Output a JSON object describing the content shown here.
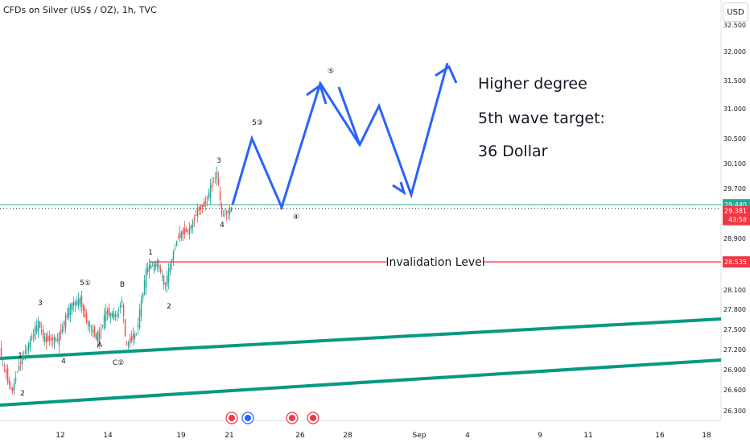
{
  "header": {
    "symbol_title": "CFDs on Silver (US$ / OZ), 1h, TVC",
    "currency": "USD"
  },
  "chart_data": {
    "type": "candlestick",
    "title": "CFDs on Silver (US$ / OZ), 1h, TVC",
    "y_axis": {
      "unit": "USD",
      "ticks": [
        "32.500",
        "32.000",
        "31.500",
        "31.000",
        "30.500",
        "30.100",
        "29.700",
        "28.900",
        "28.100",
        "27.800",
        "27.500",
        "27.200",
        "26.900",
        "26.600",
        "26.300"
      ],
      "ylim": [
        26.2,
        32.7
      ]
    },
    "x_axis": {
      "ticks": [
        "12",
        "14",
        "19",
        "21",
        "26",
        "28",
        "Sep",
        "4",
        "9",
        "11",
        "16",
        "18"
      ]
    },
    "price_labels": [
      {
        "value": "29.440",
        "color": "#22ab94"
      },
      {
        "value": "29.381",
        "sub": "43:58",
        "color": "#f23645"
      },
      {
        "value": "28.535",
        "color": "#f23645"
      }
    ],
    "horizontal_lines": [
      {
        "name": "green-level",
        "value": 29.44,
        "color": "#22ab94"
      },
      {
        "name": "current-price",
        "value": 29.381,
        "color": "#131722",
        "style": "dotted"
      },
      {
        "name": "invalidation-level",
        "value": 28.535,
        "color": "#f23645",
        "label": "Invalidation Level"
      }
    ],
    "projection_points_price": [
      29.44,
      30.5,
      29.4,
      31.45,
      30.4,
      31.05,
      29.6,
      31.8
    ],
    "wave_labels": [
      "1",
      "2",
      "3",
      "4",
      "5①",
      "A",
      "B",
      "C②",
      "1",
      "2",
      "3",
      "4",
      "5③",
      "④",
      "⑤"
    ],
    "annotation": [
      "Higher degree",
      "5th wave target:",
      "36 Dollar"
    ],
    "colors": {
      "up": "#26a69a",
      "down": "#ef5350",
      "projection": "#2962ff",
      "channel": "#089981"
    }
  }
}
